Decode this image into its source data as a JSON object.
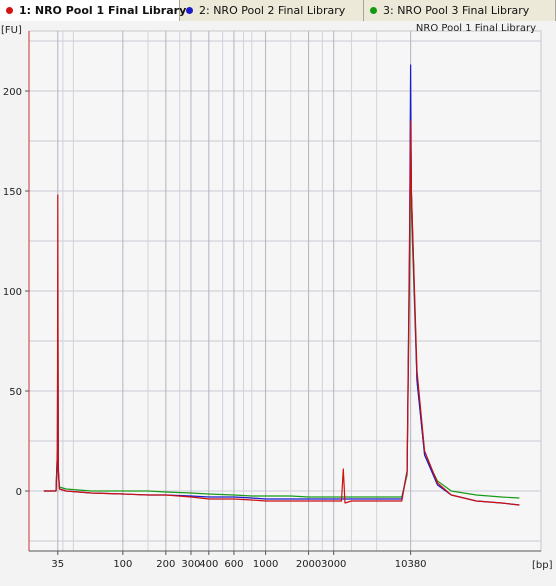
{
  "tabs": [
    {
      "label": "1: NRO Pool 1 Final Library",
      "color": "#d41414",
      "active": true
    },
    {
      "label": "2: NRO Pool 2 Final Library",
      "color": "#1c1ccc",
      "active": false
    },
    {
      "label": "3: NRO Pool 3 Final Library",
      "color": "#129a12",
      "active": false
    }
  ],
  "chart_data": {
    "type": "line",
    "title": "NRO Pool 1 Final Library",
    "ylabel": "[FU]",
    "xlabel": "[bp]",
    "ylim": [
      -30,
      230
    ],
    "y_ticks": [
      0,
      50,
      100,
      150,
      200
    ],
    "x_scale": "log",
    "x_ticks": [
      35,
      100,
      200,
      300,
      400,
      600,
      1000,
      2000,
      3000,
      10380
    ],
    "x_tick_labels": [
      "35",
      "100",
      "200",
      "300",
      "400",
      "600",
      "1000",
      "2000",
      "3000",
      "10380"
    ],
    "grid": true,
    "series": [
      {
        "name": "1: NRO Pool 1 Final Library",
        "color": "#cc1010",
        "x": [
          28,
          34,
          34.8,
          35,
          35.3,
          36,
          40,
          60,
          100,
          150,
          200,
          300,
          400,
          600,
          800,
          1000,
          1500,
          2000,
          3000,
          3400,
          3500,
          3600,
          4000,
          6000,
          9000,
          9800,
          10200,
          10380,
          10500,
          11500,
          13000,
          16000,
          20000,
          30000,
          45000,
          60000
        ],
        "y": [
          0,
          0,
          20,
          148,
          12,
          1,
          0,
          -1,
          -1.5,
          -2,
          -2,
          -3,
          -4,
          -4,
          -4.5,
          -5,
          -5,
          -5,
          -5,
          -5,
          11,
          -6,
          -5,
          -5,
          -5,
          10,
          120,
          185,
          150,
          60,
          20,
          4,
          -2,
          -5,
          -6,
          -7
        ]
      },
      {
        "name": "2: NRO Pool 2 Final Library",
        "color": "#1a1acc",
        "x": [
          28,
          34,
          34.8,
          35,
          35.3,
          36,
          40,
          60,
          100,
          150,
          200,
          300,
          400,
          600,
          800,
          1000,
          1500,
          2000,
          3000,
          4000,
          6000,
          9000,
          9800,
          10200,
          10380,
          10500,
          11500,
          13000,
          16000,
          20000,
          30000,
          45000,
          60000
        ],
        "y": [
          0,
          0,
          20,
          100,
          10,
          1,
          0,
          -1,
          -1.5,
          -2,
          -2,
          -2.5,
          -3,
          -3,
          -3.5,
          -4,
          -4,
          -4,
          -4,
          -4,
          -4,
          -4,
          10,
          130,
          213,
          150,
          55,
          18,
          3,
          -2,
          -5,
          -6,
          -7
        ]
      },
      {
        "name": "3: NRO Pool 3 Final Library",
        "color": "#1a9a1a",
        "x": [
          28,
          34,
          34.8,
          35,
          35.3,
          36,
          40,
          60,
          100,
          150,
          200,
          300,
          400,
          600,
          800,
          1000,
          1500,
          2000,
          3000,
          4000,
          6000,
          9000,
          9800,
          10200,
          10380,
          10500,
          11500,
          13000,
          16000,
          20000,
          30000,
          45000,
          60000
        ],
        "y": [
          0,
          0,
          15,
          90,
          10,
          2,
          1,
          0,
          0,
          0,
          -0.5,
          -1,
          -1.5,
          -2,
          -2.5,
          -2.5,
          -2.5,
          -3,
          -3,
          -3,
          -3,
          -3,
          8,
          110,
          190,
          140,
          55,
          18,
          5,
          0,
          -2,
          -3,
          -3.5
        ]
      }
    ]
  }
}
